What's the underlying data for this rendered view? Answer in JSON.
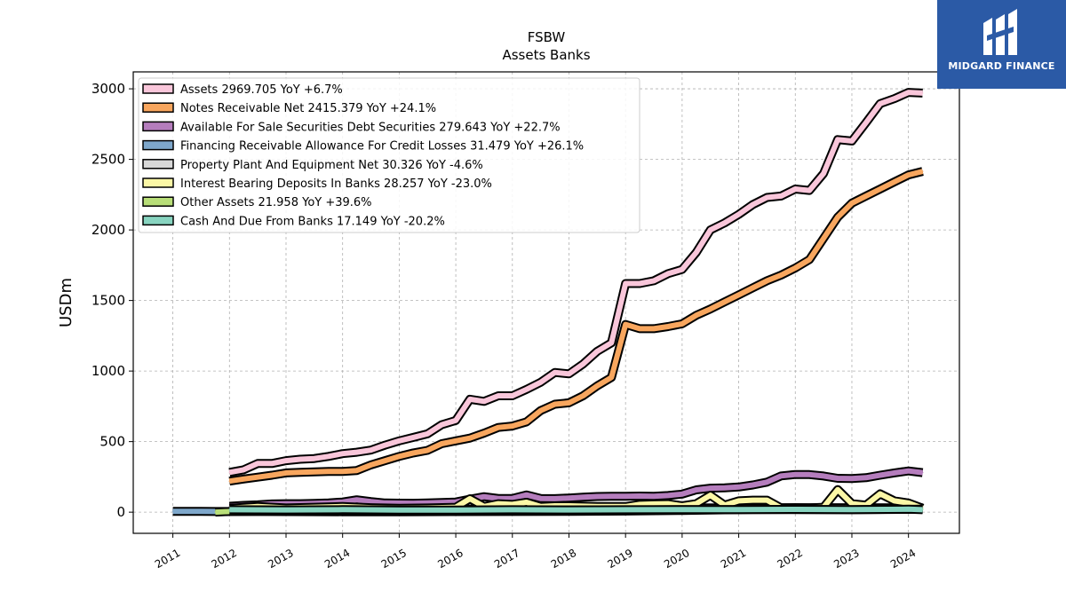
{
  "chart_data": {
    "type": "area",
    "title": "FSBW",
    "subtitle": "Assets Banks",
    "ylabel": "USDm",
    "xlabel": "",
    "ylim": [
      -150,
      3120
    ],
    "xlim": [
      2010.3,
      2024.9
    ],
    "yticks": [
      0,
      500,
      1000,
      1500,
      2000,
      2500,
      3000
    ],
    "xticks": [
      "2011",
      "2012",
      "2013",
      "2014",
      "2015",
      "2016",
      "2017",
      "2018",
      "2019",
      "2020",
      "2021",
      "2022",
      "2023",
      "2024"
    ],
    "grid": true,
    "legend_position": "upper-left",
    "series": [
      {
        "name": "Assets",
        "legend": "Assets  2969.705 YoY +6.7%",
        "color": "#f9c6da",
        "x": [
          2012.0,
          2012.25,
          2012.5,
          2012.75,
          2013.0,
          2013.25,
          2013.5,
          2013.75,
          2014.0,
          2014.25,
          2014.5,
          2014.75,
          2015.0,
          2015.25,
          2015.5,
          2015.75,
          2016.0,
          2016.25,
          2016.5,
          2016.75,
          2017.0,
          2017.25,
          2017.5,
          2017.75,
          2018.0,
          2018.25,
          2018.5,
          2018.75,
          2019.0,
          2019.25,
          2019.5,
          2019.75,
          2020.0,
          2020.25,
          2020.5,
          2020.75,
          2021.0,
          2021.25,
          2021.5,
          2021.75,
          2022.0,
          2022.25,
          2022.5,
          2022.75,
          2023.0,
          2023.25,
          2023.5,
          2023.75,
          2024.0,
          2024.25
        ],
        "values": [
          282,
          300,
          345,
          345,
          365,
          375,
          380,
          395,
          415,
          425,
          440,
          475,
          505,
          530,
          555,
          620,
          650,
          800,
          785,
          825,
          825,
          870,
          920,
          990,
          980,
          1050,
          1140,
          1200,
          1620,
          1620,
          1640,
          1690,
          1720,
          1840,
          2000,
          2050,
          2110,
          2180,
          2230,
          2240,
          2290,
          2280,
          2400,
          2640,
          2630,
          2760,
          2895,
          2930,
          2975,
          2970
        ]
      },
      {
        "name": "Notes Receivable Net",
        "legend": "Notes Receivable Net  2415.379 YoY +24.1%",
        "color": "#f8a65e",
        "x": [
          2012.0,
          2012.25,
          2012.5,
          2012.75,
          2013.0,
          2013.25,
          2013.5,
          2013.75,
          2014.0,
          2014.25,
          2014.5,
          2014.75,
          2015.0,
          2015.25,
          2015.5,
          2015.75,
          2016.0,
          2016.25,
          2016.5,
          2016.75,
          2017.0,
          2017.25,
          2017.5,
          2017.75,
          2018.0,
          2018.25,
          2018.5,
          2018.75,
          2019.0,
          2019.25,
          2019.5,
          2019.75,
          2020.0,
          2020.25,
          2020.5,
          2020.75,
          2021.0,
          2021.25,
          2021.5,
          2021.75,
          2022.0,
          2022.25,
          2022.5,
          2022.75,
          2023.0,
          2023.25,
          2023.5,
          2023.75,
          2024.0,
          2024.25
        ],
        "values": [
          220,
          235,
          248,
          262,
          278,
          282,
          285,
          288,
          288,
          295,
          335,
          365,
          395,
          420,
          438,
          485,
          505,
          525,
          560,
          600,
          610,
          640,
          720,
          765,
          775,
          825,
          895,
          955,
          1330,
          1300,
          1300,
          1315,
          1335,
          1395,
          1440,
          1490,
          1540,
          1590,
          1640,
          1680,
          1730,
          1790,
          1940,
          2090,
          2190,
          2240,
          2290,
          2340,
          2390,
          2415
        ]
      },
      {
        "name": "Available For Sale Securities Debt Securities",
        "legend": "Available For Sale Securities Debt Securities  279.643 YoY +22.7%",
        "color": "#b57dbd",
        "x": [
          2012.0,
          2012.25,
          2012.5,
          2012.75,
          2013.0,
          2013.25,
          2013.5,
          2013.75,
          2014.0,
          2014.25,
          2014.5,
          2014.75,
          2015.0,
          2015.25,
          2015.5,
          2015.75,
          2016.0,
          2016.25,
          2016.5,
          2016.75,
          2017.0,
          2017.25,
          2017.5,
          2017.75,
          2018.0,
          2018.25,
          2018.5,
          2018.75,
          2019.0,
          2019.25,
          2019.5,
          2019.75,
          2020.0,
          2020.25,
          2020.5,
          2020.75,
          2021.0,
          2021.25,
          2021.5,
          2021.75,
          2022.0,
          2022.25,
          2022.5,
          2022.75,
          2023.0,
          2023.25,
          2023.5,
          2023.75,
          2024.0,
          2024.25
        ],
        "values": [
          42,
          48,
          52,
          58,
          60,
          60,
          62,
          66,
          72,
          88,
          75,
          65,
          64,
          63,
          66,
          68,
          72,
          92,
          110,
          97,
          97,
          122,
          97,
          96,
          100,
          106,
          111,
          112,
          112,
          114,
          113,
          118,
          128,
          158,
          170,
          172,
          178,
          193,
          213,
          257,
          267,
          266,
          256,
          240,
          238,
          244,
          262,
          278,
          292,
          280
        ]
      },
      {
        "name": "Financing Receivable Allowance For Credit Losses",
        "legend": "Financing Receivable Allowance For Credit Losses  31.479 YoY +26.1%",
        "color": "#7ea7cb",
        "x": [
          2011.0,
          2011.25,
          2011.5,
          2011.75,
          2012.0,
          2012.5,
          2013.0,
          2014.0,
          2015.0,
          2016.0,
          2017.0,
          2018.0,
          2019.0,
          2020.0,
          2021.0,
          2022.0,
          2023.0,
          2024.0,
          2024.25
        ],
        "values": [
          6,
          6,
          6,
          5,
          5,
          5,
          4,
          3,
          3,
          4,
          5,
          6,
          8,
          12,
          18,
          24,
          26,
          29,
          31
        ]
      },
      {
        "name": "Property Plant And Equipment Net",
        "legend": "Property Plant And Equipment Net  30.326 YoY -4.6%",
        "color": "#d8d8d8",
        "x": [
          2012.0,
          2013.0,
          2014.0,
          2015.0,
          2016.0,
          2017.0,
          2018.0,
          2019.0,
          2020.0,
          2021.0,
          2022.0,
          2023.0,
          2024.0,
          2024.25
        ],
        "values": [
          18,
          19,
          20,
          21,
          22,
          24,
          27,
          29,
          30,
          31,
          32,
          32,
          31,
          30
        ]
      },
      {
        "name": "Interest Bearing Deposits In Banks",
        "legend": "Interest Bearing Deposits In Banks  28.257 YoY -23.0%",
        "color": "#fbf7a6",
        "x": [
          2012.0,
          2012.5,
          2013.0,
          2013.5,
          2014.0,
          2014.5,
          2015.0,
          2015.5,
          2016.0,
          2016.25,
          2016.5,
          2016.75,
          2017.0,
          2017.25,
          2017.5,
          2017.75,
          2018.0,
          2018.5,
          2019.0,
          2019.25,
          2019.5,
          2019.75,
          2020.0,
          2020.25,
          2020.5,
          2020.75,
          2021.0,
          2021.25,
          2021.5,
          2021.75,
          2022.0,
          2022.25,
          2022.5,
          2022.75,
          2023.0,
          2023.25,
          2023.5,
          2023.75,
          2024.0,
          2024.25
        ],
        "values": [
          28,
          40,
          30,
          35,
          40,
          32,
          28,
          30,
          35,
          95,
          40,
          60,
          55,
          70,
          40,
          45,
          45,
          40,
          40,
          55,
          58,
          60,
          45,
          60,
          120,
          50,
          80,
          85,
          85,
          30,
          32,
          30,
          35,
          160,
          60,
          50,
          130,
          80,
          65,
          28
        ]
      },
      {
        "name": "Other Assets",
        "legend": "Other Assets  21.958 YoY +39.6%",
        "color": "#b8de78",
        "x": [
          2011.75,
          2012.0,
          2013.0,
          2014.0,
          2015.0,
          2016.0,
          2017.0,
          2018.0,
          2019.0,
          2020.0,
          2021.0,
          2022.0,
          2023.0,
          2024.0,
          2024.25
        ],
        "values": [
          0,
          5,
          8,
          10,
          12,
          13,
          14,
          15,
          16,
          17,
          18,
          18,
          17,
          20,
          22
        ]
      },
      {
        "name": "Cash And Due From Banks",
        "legend": "Cash And Due From Banks  17.149 YoY -20.2%",
        "color": "#88d4c0",
        "x": [
          2012.0,
          2013.0,
          2014.0,
          2015.0,
          2016.0,
          2017.0,
          2018.0,
          2019.0,
          2020.0,
          2021.0,
          2022.0,
          2023.0,
          2024.0,
          2024.25
        ],
        "values": [
          17,
          16,
          18,
          15,
          15,
          17,
          16,
          17,
          18,
          18,
          20,
          18,
          21,
          17
        ]
      }
    ]
  },
  "brand": {
    "logo_text": "MIDGARD FINANCE",
    "background": "#2b5aa6"
  }
}
